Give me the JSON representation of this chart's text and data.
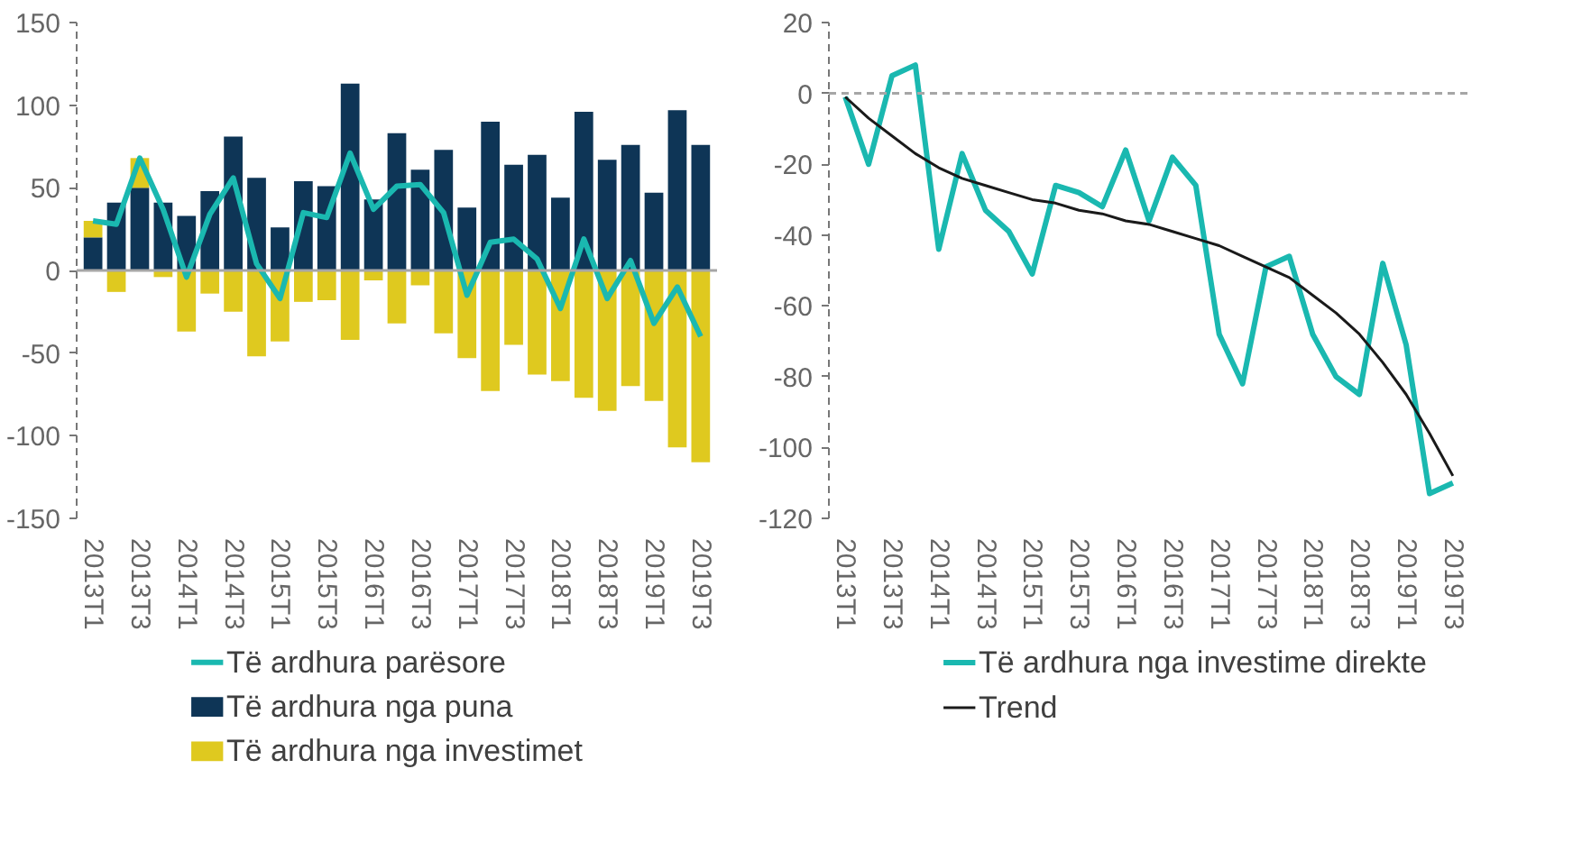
{
  "chart_data": [
    {
      "type": "bar",
      "stacked": true,
      "legend": "bottom",
      "categories": [
        "2013T1",
        null,
        "2013T3",
        null,
        "2014T1",
        null,
        "2014T3",
        null,
        "2015T1",
        null,
        "2015T3",
        null,
        "2016T1",
        null,
        "2016T3",
        null,
        "2017T1",
        null,
        "2017T3",
        null,
        "2018T1",
        null,
        "2018T3",
        null,
        "2019T1",
        null,
        "2019T3"
      ],
      "ylim": [
        -150,
        150
      ],
      "yticks": [
        -150,
        -100,
        -50,
        0,
        50,
        100,
        150
      ],
      "ref_lines": [
        {
          "axis": "y",
          "value": 0,
          "color": "#a6a6a6",
          "line_style": "solid"
        }
      ],
      "series": [
        {
          "name": "Të ardhura parësore",
          "type": "line",
          "color": "#1ab8b0",
          "values": [
            30,
            28,
            68,
            37,
            -4,
            34,
            56,
            4,
            -17,
            35,
            32,
            71,
            37,
            51,
            52,
            35,
            -15,
            17,
            19,
            7,
            -23,
            19,
            -17,
            6,
            -32,
            -10,
            -40
          ]
        },
        {
          "name": "Të ardhura nga puna",
          "color": "#0e3556",
          "values": [
            20,
            41,
            50,
            41,
            33,
            48,
            81,
            56,
            26,
            54,
            51,
            113,
            43,
            83,
            61,
            73,
            38,
            90,
            64,
            70,
            44,
            96,
            67,
            76,
            47,
            97,
            76
          ]
        },
        {
          "name": "Të ardhura nga investimet",
          "color": "#dfc91f",
          "values": [
            10,
            -13,
            18,
            -4,
            -37,
            -14,
            -25,
            -52,
            -43,
            -19,
            -18,
            -42,
            -6,
            -32,
            -9,
            -38,
            -53,
            -73,
            -45,
            -63,
            -67,
            -77,
            -85,
            -70,
            -79,
            -107,
            -116
          ]
        }
      ]
    },
    {
      "type": "line",
      "legend": "bottom",
      "categories": [
        "2013T1",
        null,
        "2013T3",
        null,
        "2014T1",
        null,
        "2014T3",
        null,
        "2015T1",
        null,
        "2015T3",
        null,
        "2016T1",
        null,
        "2016T3",
        null,
        "2017T1",
        null,
        "2017T3",
        null,
        "2018T1",
        null,
        "2018T3",
        null,
        "2019T1",
        null,
        "2019T3"
      ],
      "ylim": [
        -120,
        20
      ],
      "yticks": [
        -120,
        -100,
        -80,
        -60,
        -40,
        -20,
        0,
        20
      ],
      "ref_lines": [
        {
          "axis": "y",
          "value": 0,
          "color": "#a6a6a6",
          "line_style": "dashed"
        }
      ],
      "series": [
        {
          "name": "Të ardhura nga investime direkte",
          "color": "#1ab8b0",
          "values": [
            -1,
            -20,
            5,
            8,
            -44,
            -17,
            -33,
            -39,
            -51,
            -26,
            -28,
            -32,
            -16,
            -36,
            -18,
            -26,
            -68,
            -82,
            -49,
            -46,
            -68,
            -80,
            -85,
            -48,
            -71,
            -113,
            -110
          ]
        },
        {
          "name": "Trend",
          "color": "#1a1a1a",
          "values": [
            -1,
            -7,
            -12,
            -17,
            -21,
            -24,
            -26,
            -28,
            -30,
            -31,
            -33,
            -34,
            -36,
            -37,
            -39,
            -41,
            -43,
            -46,
            -49,
            -52,
            -57,
            -62,
            -68,
            -76,
            -85,
            -96,
            -108
          ]
        }
      ]
    }
  ]
}
